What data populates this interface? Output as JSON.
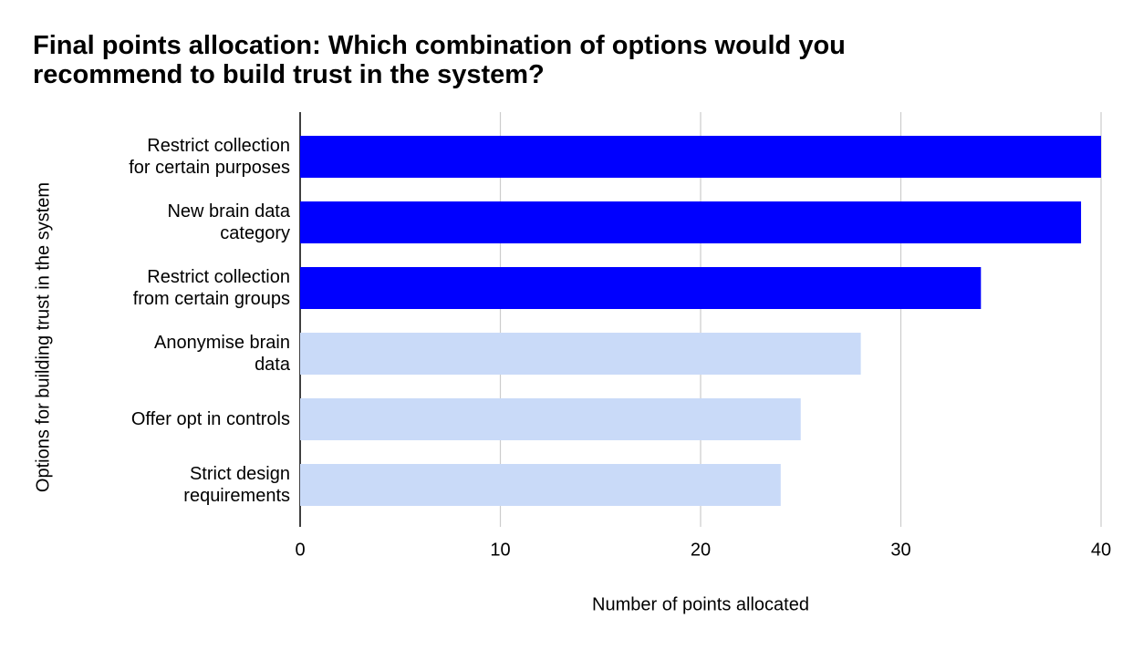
{
  "chart_data": {
    "type": "hbar",
    "title": "Final points allocation: Which combination of options would you recommend to build trust in the system?",
    "categories": [
      "Restrict collection\nfor certain purposes",
      "New brain data\ncategory",
      "Restrict collection\nfrom certain groups",
      "Anonymise brain\ndata",
      "Offer opt in controls",
      "Strict design\nrequirements"
    ],
    "values": [
      40,
      39,
      34,
      28,
      25,
      24
    ],
    "colors": [
      "#0000ff",
      "#0000ff",
      "#0000ff",
      "#c9daf8",
      "#c9daf8",
      "#c9daf8"
    ],
    "xlim": [
      0,
      40
    ],
    "xticks": [
      0,
      10,
      20,
      30,
      40
    ],
    "xlabel": "Number of points allocated",
    "ylabel": "Options for building trust in the system",
    "grid": true
  }
}
